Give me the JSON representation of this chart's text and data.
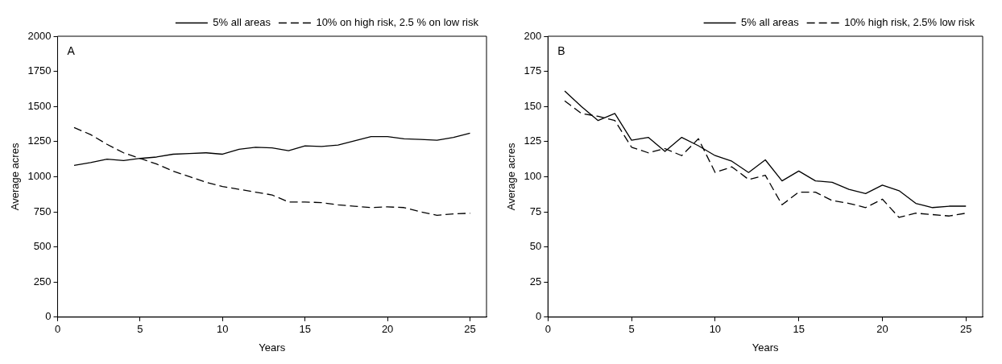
{
  "chart_data": [
    {
      "type": "line",
      "xlabel": "Years",
      "ylabel": "Average acres",
      "annotations": [
        "A"
      ],
      "x": [
        1,
        2,
        3,
        4,
        5,
        6,
        7,
        8,
        9,
        10,
        11,
        12,
        13,
        14,
        15,
        16,
        17,
        18,
        19,
        20,
        21,
        22,
        23,
        24,
        25
      ],
      "xlim": [
        0,
        26
      ],
      "xticks": [
        0,
        5,
        10,
        15,
        20,
        25
      ],
      "ylim": [
        0,
        2000
      ],
      "yticks": [
        0,
        250,
        500,
        750,
        1000,
        1250,
        1500,
        1750,
        2000
      ],
      "grid": false,
      "legend": "top right",
      "marker": "none",
      "series": [
        {
          "name": "5% all areas",
          "color": "#000000",
          "line_style": "solid",
          "values": [
            1080,
            1100,
            1125,
            1115,
            1130,
            1140,
            1160,
            1165,
            1170,
            1160,
            1195,
            1210,
            1205,
            1185,
            1220,
            1215,
            1225,
            1255,
            1285,
            1285,
            1270,
            1265,
            1260,
            1280,
            1310
          ]
        },
        {
          "name": "10% on high risk, 2.5 % on low risk",
          "color": "#000000",
          "line_style": "dashed",
          "values": [
            1350,
            1300,
            1230,
            1170,
            1130,
            1090,
            1040,
            1000,
            960,
            930,
            910,
            890,
            870,
            820,
            820,
            815,
            800,
            790,
            780,
            785,
            780,
            750,
            725,
            735,
            740
          ]
        }
      ]
    },
    {
      "type": "line",
      "xlabel": "Years",
      "ylabel": "Average acres",
      "annotations": [
        "B"
      ],
      "x": [
        1,
        2,
        3,
        4,
        5,
        6,
        7,
        8,
        9,
        10,
        11,
        12,
        13,
        14,
        15,
        16,
        17,
        18,
        19,
        20,
        21,
        22,
        23,
        24,
        25
      ],
      "xlim": [
        0,
        26
      ],
      "xticks": [
        0,
        5,
        10,
        15,
        20,
        25
      ],
      "ylim": [
        0,
        200
      ],
      "yticks": [
        0,
        25,
        50,
        75,
        100,
        125,
        150,
        175,
        200
      ],
      "grid": false,
      "legend": "top right",
      "marker": "none",
      "series": [
        {
          "name": "5% all areas",
          "color": "#000000",
          "line_style": "solid",
          "values": [
            161,
            150,
            140,
            145,
            126,
            128,
            118,
            128,
            122,
            115,
            111,
            103,
            112,
            97,
            104,
            97,
            96,
            91,
            88,
            94,
            90,
            81,
            78,
            79,
            79
          ]
        },
        {
          "name": "10% high risk, 2.5% low risk",
          "color": "#000000",
          "line_style": "dashed",
          "values": [
            154,
            145,
            143,
            140,
            121,
            117,
            120,
            115,
            127,
            103,
            107,
            98,
            101,
            80,
            89,
            89,
            83,
            81,
            78,
            84,
            71,
            74,
            73,
            72,
            74
          ]
        }
      ]
    }
  ]
}
